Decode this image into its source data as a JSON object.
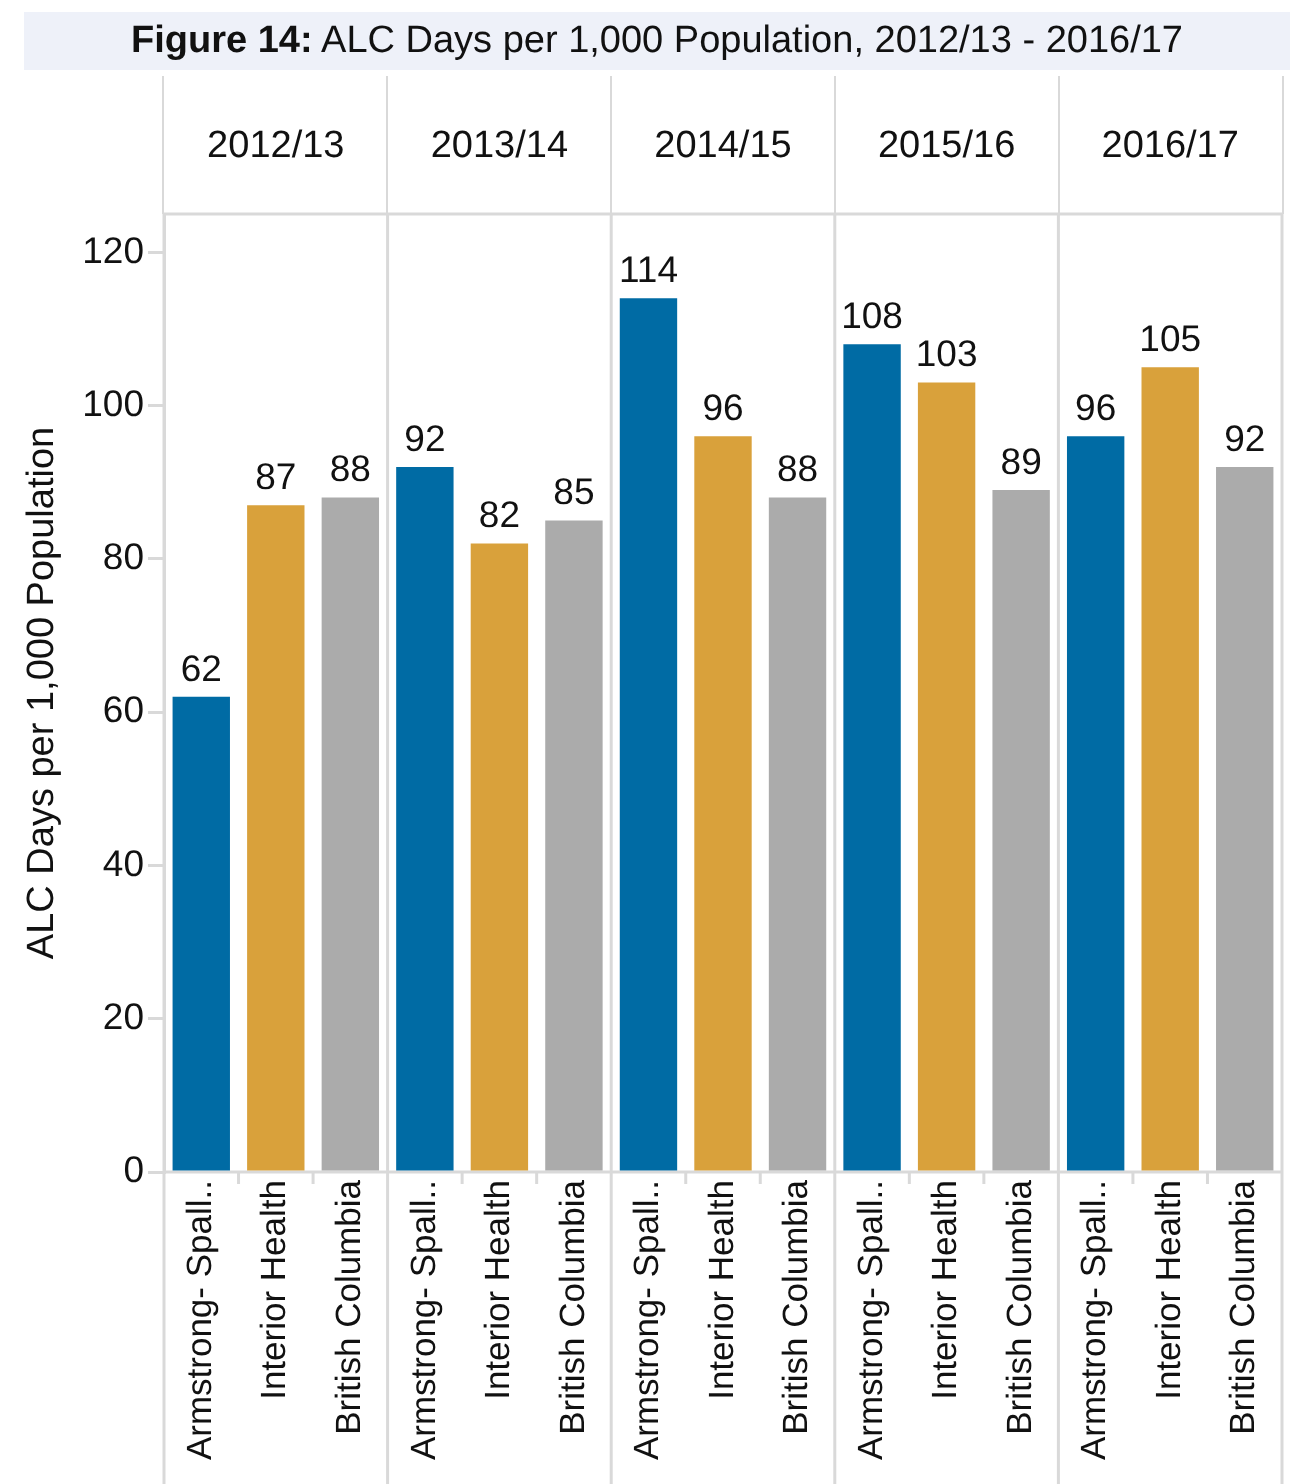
{
  "chart_data": {
    "type": "bar",
    "title": "Figure 14: ALC Days per 1,000 Population, 2012/13 - 2016/17",
    "ylabel": "ALC Days per 1,000 Population",
    "categories": [
      "2012/13",
      "2013/14",
      "2014/15",
      "2015/16",
      "2016/17"
    ],
    "series": [
      {
        "name": "Armstrong- Spall..",
        "color": "#006ba4",
        "values": [
          62,
          92,
          114,
          108,
          96
        ]
      },
      {
        "name": "Interior Health",
        "color": "#d9a13b",
        "values": [
          87,
          82,
          96,
          103,
          105
        ]
      },
      {
        "name": "British Columbia",
        "color": "#ababab",
        "values": [
          88,
          85,
          88,
          89,
          92
        ]
      }
    ],
    "ylim": [
      0,
      125
    ],
    "yticks": [
      0,
      20,
      40,
      60,
      80,
      100,
      120
    ],
    "grid": "x",
    "data_labels": true
  }
}
